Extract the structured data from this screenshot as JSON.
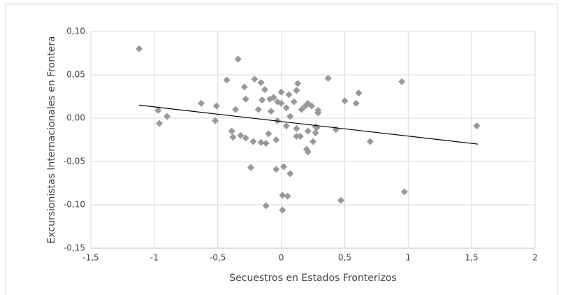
{
  "chart_data": {
    "type": "scatter",
    "x_label": "Secuestros en Estados Fronterizos",
    "y_label": "Excursionistas Internacionales en Frontera",
    "color": "#999999",
    "grid": true,
    "xlim": [
      -1.5,
      2
    ],
    "ylim": [
      -0.15,
      0.1
    ],
    "xticks": [
      {
        "value": -1.5,
        "label": "-1,5"
      },
      -1,
      {
        "value": -0.5,
        "label": "-0,5"
      },
      0,
      {
        "value": 0.5,
        "label": "0,5"
      },
      1,
      {
        "value": 1.5,
        "label": "1,5"
      },
      2
    ],
    "yticks": [
      {
        "value": -0.15,
        "label": "-0,15"
      },
      {
        "value": -0.1,
        "label": "-0,10"
      },
      {
        "value": -0.05,
        "label": "-0,05"
      },
      {
        "value": 0,
        "label": "0,00"
      },
      {
        "value": 0.05,
        "label": "0,05"
      },
      {
        "value": 0.1,
        "label": "0,10"
      }
    ],
    "x": [
      -1.12,
      -0.34,
      -0.97,
      -0.96,
      -0.9,
      -0.63,
      -0.51,
      -0.52,
      -0.43,
      -0.36,
      -0.39,
      -0.38,
      -0.32,
      -0.28,
      -0.29,
      -0.28,
      -0.22,
      -0.24,
      -0.21,
      -0.18,
      -0.16,
      -0.15,
      -0.13,
      -0.16,
      -0.12,
      -0.1,
      -0.09,
      -0.08,
      -0.06,
      -0.12,
      -0.04,
      -0.04,
      -0.03,
      -0.03,
      0,
      0,
      0.02,
      0.01,
      0.01,
      0.05,
      0.04,
      0.04,
      0.06,
      0.07,
      0.07,
      0.1,
      0.12,
      0.12,
      0.12,
      0.13,
      0.15,
      0.16,
      0.19,
      0.21,
      0.21,
      0.24,
      0.25,
      0.2,
      0.21,
      0.27,
      0.27,
      0.29,
      0.29,
      0.28,
      0.37,
      0.43,
      0.47,
      0.5,
      0.59,
      0.61,
      0.7,
      0.95,
      0.97,
      1.54
    ],
    "y": [
      0.08,
      0.068,
      0.009,
      -0.006,
      0.002,
      0.017,
      0.014,
      -0.003,
      0.044,
      0.01,
      -0.015,
      -0.022,
      -0.02,
      -0.023,
      0.036,
      0.022,
      -0.027,
      -0.057,
      0.045,
      0.01,
      0.041,
      0.021,
      0.033,
      -0.028,
      -0.029,
      -0.018,
      0.022,
      0.008,
      0.024,
      -0.101,
      -0.059,
      -0.025,
      -0.003,
      0.019,
      0.017,
      0.03,
      -0.056,
      -0.089,
      -0.106,
      -0.09,
      -0.009,
      0.012,
      0.027,
      0.002,
      -0.064,
      0.019,
      -0.012,
      -0.021,
      0.032,
      0.04,
      -0.021,
      0.01,
      0.014,
      0.017,
      -0.015,
      0.014,
      -0.027,
      -0.036,
      -0.039,
      -0.017,
      -0.01,
      0.009,
      0.006,
      -0.011,
      0.046,
      -0.013,
      -0.095,
      0.02,
      0.017,
      0.029,
      -0.027,
      0.042,
      -0.085,
      -0.009
    ],
    "trendline": {
      "color": "#000000",
      "x": [
        -1.12,
        1.55
      ],
      "y": [
        0.015,
        -0.03
      ]
    }
  }
}
